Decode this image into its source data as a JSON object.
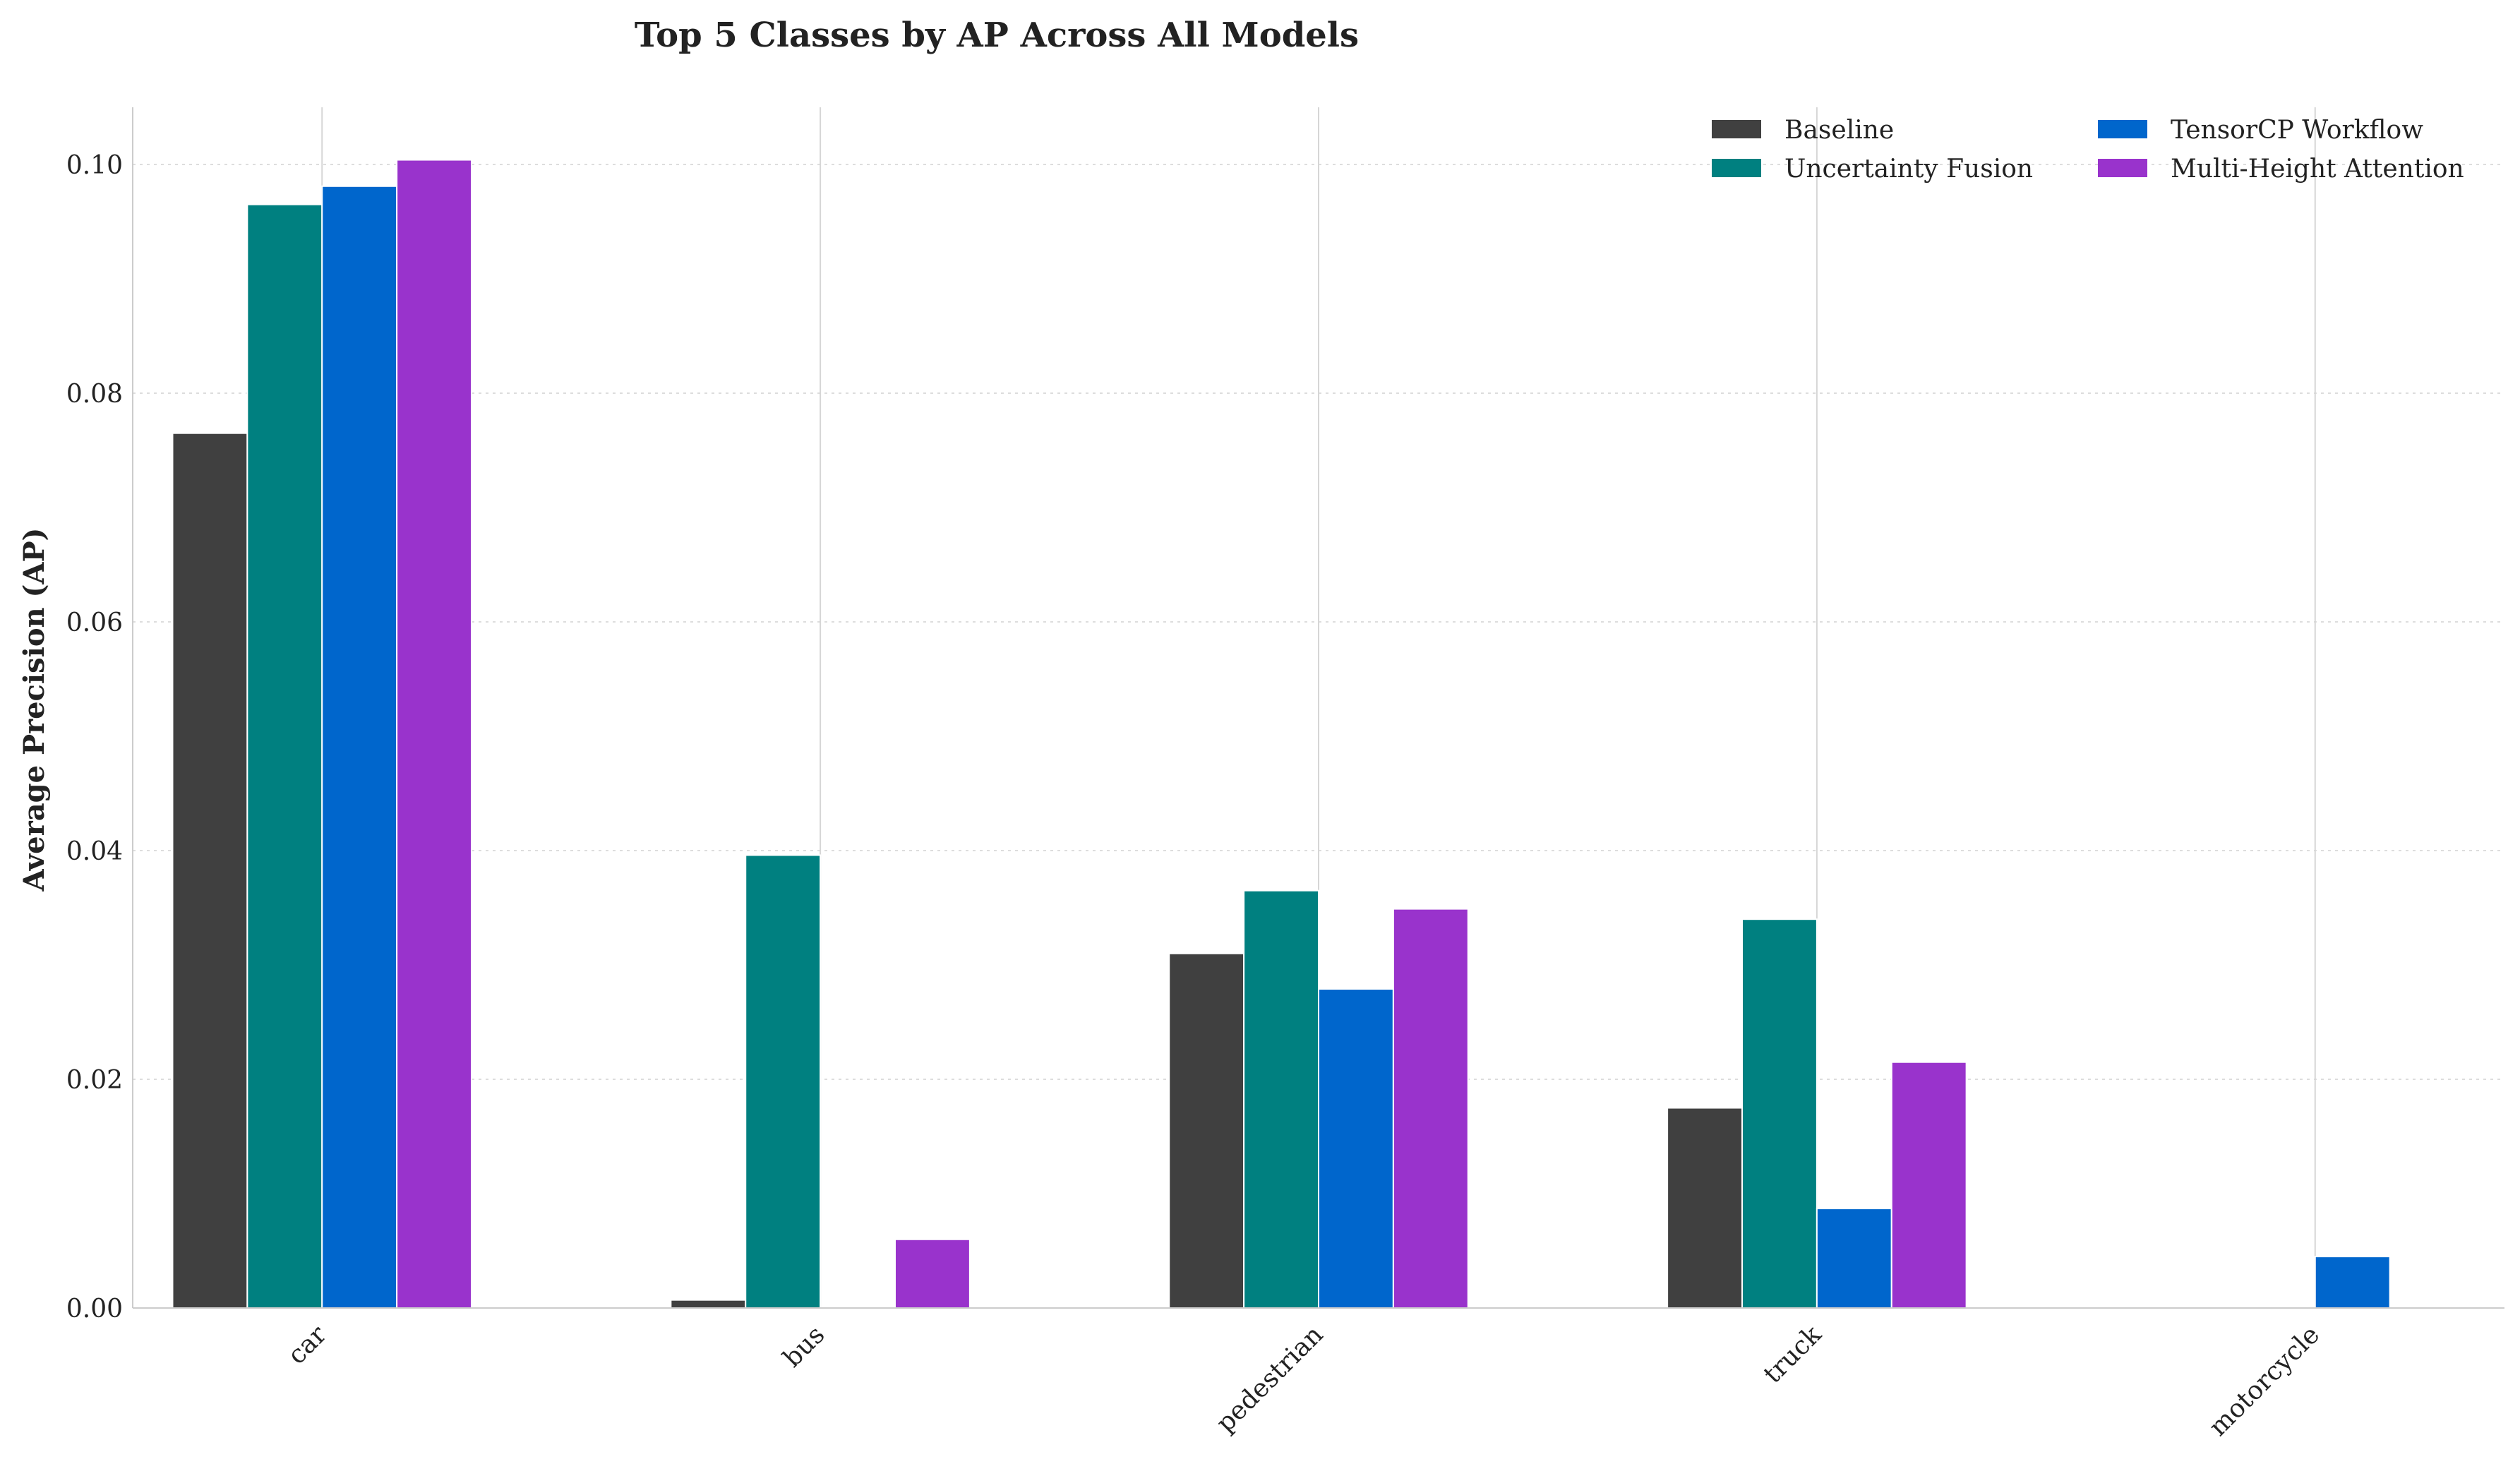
{
  "chart_data": {
    "type": "bar",
    "title": "Top 5 Classes by AP Across All Models",
    "xlabel": "",
    "ylabel": "Average Precision (AP)",
    "categories": [
      "car",
      "bus",
      "pedestrian",
      "truck",
      "motorcycle"
    ],
    "ylim": [
      0,
      0.105
    ],
    "yticks": [
      "0.00",
      "0.02",
      "0.04",
      "0.06",
      "0.08",
      "0.10"
    ],
    "grid": true,
    "legend_position": "top-right",
    "series": [
      {
        "name": "Baseline",
        "color": "#404040",
        "values": [
          0.0765,
          0.0007,
          0.031,
          0.0175,
          0
        ]
      },
      {
        "name": "Uncertainty Fusion",
        "color": "#008080",
        "values": [
          0.0965,
          0.0396,
          0.0365,
          0.034,
          0
        ]
      },
      {
        "name": "TensorCP Workflow",
        "color": "#0066CC",
        "values": [
          0.0981,
          0,
          0.0279,
          0.0087,
          0.0045
        ]
      },
      {
        "name": "Multi-Height Attention",
        "color": "#9933CC",
        "values": [
          0.1004,
          0.006,
          0.0349,
          0.0215,
          0
        ]
      }
    ]
  }
}
